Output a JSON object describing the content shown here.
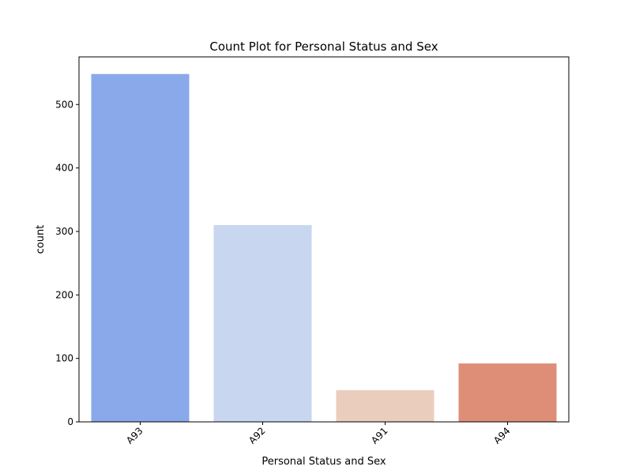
{
  "chart_data": {
    "type": "bar",
    "title": "Count Plot for Personal Status and Sex",
    "xlabel": "Personal Status and Sex",
    "ylabel": "count",
    "categories": [
      "A93",
      "A92",
      "A91",
      "A94"
    ],
    "values": [
      548,
      310,
      50,
      92
    ],
    "colors": [
      "#8aa9ea",
      "#c8d6ef",
      "#ebcdbe",
      "#de8e77"
    ],
    "ylim": [
      0,
      575
    ],
    "yticks": [
      0,
      100,
      200,
      300,
      400,
      500
    ],
    "grid": false,
    "legend": "none"
  }
}
